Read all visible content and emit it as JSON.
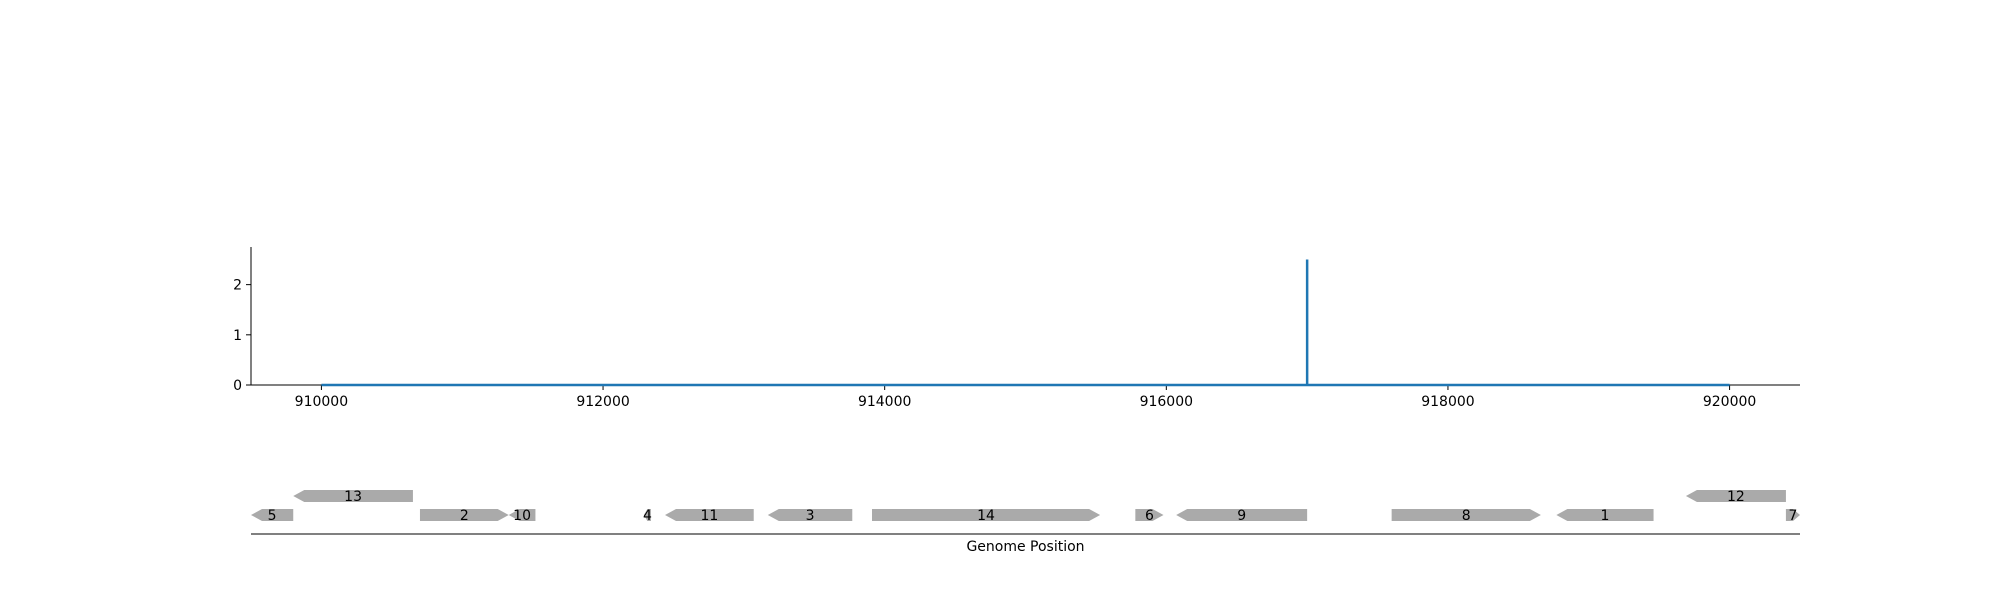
{
  "chart_data": [
    {
      "type": "line",
      "x_ticks": [
        910000,
        912000,
        914000,
        916000,
        918000,
        920000
      ],
      "y_ticks": [
        0,
        1,
        2
      ],
      "xlim": [
        909500,
        920500
      ],
      "ylim": [
        0,
        2.75
      ],
      "series": [
        {
          "color": "#1f77b4",
          "x": [
            910000,
            917000,
            917000,
            917000,
            920000
          ],
          "y": [
            0,
            0,
            2.5,
            0,
            0
          ]
        }
      ],
      "grid": false
    },
    {
      "type": "gene-map",
      "xlabel": "Genome Position",
      "xlim": [
        909500,
        920500
      ],
      "gene_color": "#aaaaaa",
      "genes": [
        {
          "label": "5",
          "start": 909500,
          "end": 909800,
          "strand": -1,
          "row": 0
        },
        {
          "label": "13",
          "start": 909800,
          "end": 910650,
          "strand": -1,
          "row": 1
        },
        {
          "label": "2",
          "start": 910700,
          "end": 911330,
          "strand": 1,
          "row": 0
        },
        {
          "label": "10",
          "start": 911330,
          "end": 911520,
          "strand": -1,
          "row": 0
        },
        {
          "label": "4",
          "start": 912290,
          "end": 912340,
          "strand": -1,
          "row": 0
        },
        {
          "label": "11",
          "start": 912440,
          "end": 913070,
          "strand": -1,
          "row": 0
        },
        {
          "label": "3",
          "start": 913170,
          "end": 913770,
          "strand": -1,
          "row": 0
        },
        {
          "label": "14",
          "start": 913910,
          "end": 915530,
          "strand": 1,
          "row": 0
        },
        {
          "label": "6",
          "start": 915780,
          "end": 915980,
          "strand": 1,
          "row": 0
        },
        {
          "label": "9",
          "start": 916070,
          "end": 917000,
          "strand": -1,
          "row": 0
        },
        {
          "label": "8",
          "start": 917600,
          "end": 918660,
          "strand": 1,
          "row": 0
        },
        {
          "label": "1",
          "start": 918770,
          "end": 919460,
          "strand": -1,
          "row": 0
        },
        {
          "label": "12",
          "start": 919690,
          "end": 920400,
          "strand": -1,
          "row": 1
        },
        {
          "label": "7",
          "start": 920400,
          "end": 920500,
          "strand": 1,
          "row": 0
        }
      ]
    }
  ]
}
